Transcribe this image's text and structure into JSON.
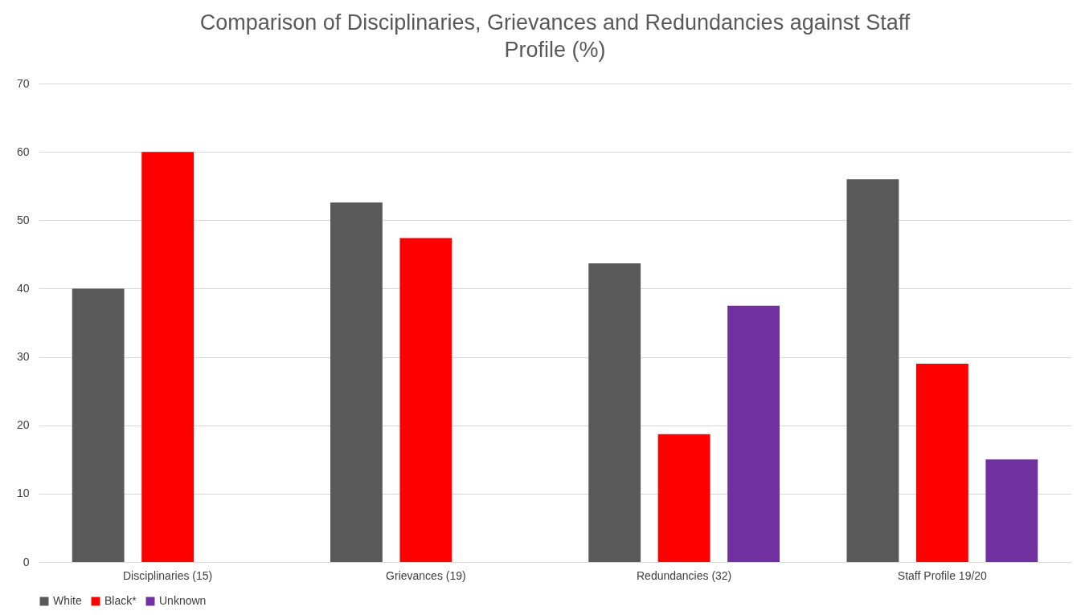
{
  "chart_data": {
    "type": "bar",
    "title": "Comparison of Disciplinaries, Grievances and Redundancies against Staff Profile (%)",
    "categories": [
      "Disciplinaries (15)",
      "Grievances (19)",
      "Redundancies (32)",
      "Staff Profile 19/20"
    ],
    "series": [
      {
        "name": "White",
        "color": "#595959",
        "values": [
          40,
          52.6,
          43.7,
          56
        ]
      },
      {
        "name": "Black*",
        "color": "#ff0000",
        "values": [
          60,
          47.4,
          18.7,
          29
        ]
      },
      {
        "name": "Unknown",
        "color": "#7030a0",
        "values": [
          null,
          null,
          37.5,
          15
        ]
      }
    ],
    "ylim": [
      0,
      70
    ],
    "yticks": [
      0,
      10,
      20,
      30,
      40,
      50,
      60,
      70
    ],
    "grid": "y",
    "legend": "bottom"
  }
}
